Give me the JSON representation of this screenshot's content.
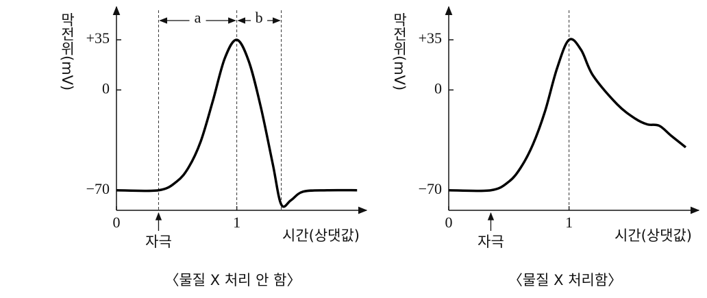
{
  "chart_data": [
    {
      "type": "line",
      "title": "〈물질 X  처리 안 함〉",
      "y_label": "막전위(mV)",
      "x_label": "시간(상댓값)",
      "x": [
        0,
        0.35,
        0.5,
        0.6,
        0.7,
        0.8,
        0.9,
        1.0,
        1.1,
        1.2,
        1.3,
        1.37,
        1.45,
        1.55,
        1.75,
        2.0
      ],
      "series": [
        {
          "color": "#000000",
          "values": [
            -70,
            -70,
            -64,
            -54,
            -36,
            -8,
            22,
            35,
            20,
            -12,
            -52,
            -80,
            -77,
            -71,
            -70,
            -70
          ]
        }
      ],
      "xlim": [
        0,
        2.05
      ],
      "ylim": [
        -84,
        58
      ],
      "xticks": [
        0,
        1
      ],
      "yticks": [
        {
          "value": -70,
          "label": "−70"
        },
        0,
        {
          "value": 35,
          "label": "+35"
        }
      ],
      "vlines": [
        0.35,
        1,
        1.37
      ],
      "stimulus": {
        "label": "자극",
        "x": 0.35
      },
      "annotations": [
        {
          "text": "a",
          "x": [
            0.35,
            1
          ]
        },
        {
          "text": "b",
          "x": [
            1,
            1.37
          ]
        }
      ]
    },
    {
      "type": "line",
      "title": "〈물질 X  처리함〉",
      "y_label": "막전위(mV)",
      "x_label": "시간(상댓값)",
      "x": [
        0,
        0.35,
        0.5,
        0.6,
        0.7,
        0.8,
        0.9,
        1.0,
        1.1,
        1.2,
        1.4,
        1.55,
        1.65,
        1.75,
        1.85,
        1.97
      ],
      "series": [
        {
          "color": "#000000",
          "values": [
            -70,
            -70,
            -64,
            -54,
            -38,
            -15,
            15,
            35,
            28,
            10,
            -10,
            -20,
            -24,
            -25,
            -32,
            -40
          ]
        }
      ],
      "xlim": [
        0,
        2.05
      ],
      "ylim": [
        -84,
        58
      ],
      "xticks": [
        0,
        1
      ],
      "yticks": [
        {
          "value": -70,
          "label": "−70"
        },
        0,
        {
          "value": 35,
          "label": "+35"
        }
      ],
      "vlines": [
        1
      ],
      "stimulus": {
        "label": "자극",
        "x": 0.35
      },
      "annotations": []
    }
  ]
}
